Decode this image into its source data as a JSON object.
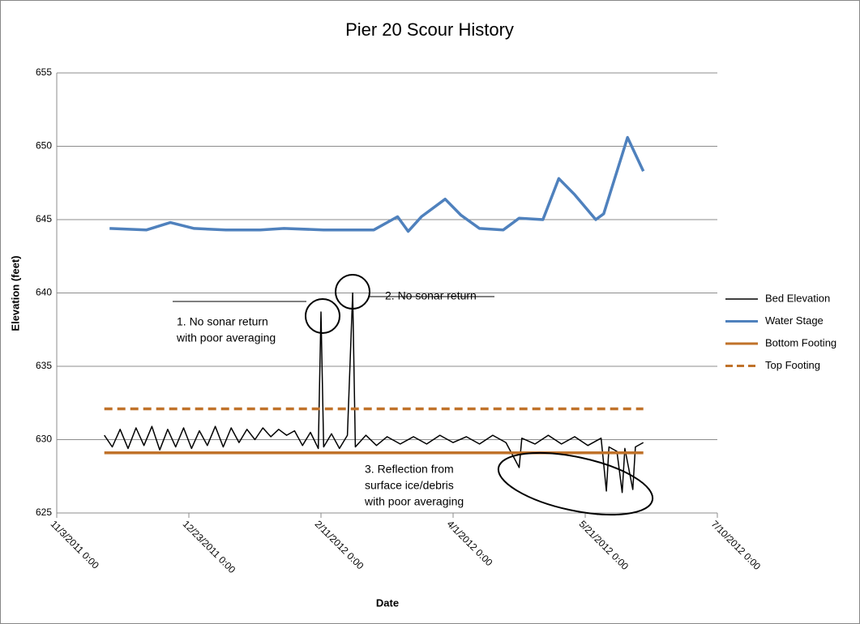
{
  "chart_data": {
    "type": "line",
    "title": "Pier 20 Scour History",
    "x_label": "Date",
    "y_label": "Elevation (feet)",
    "xlim": [
      "2011-11-03",
      "2012-07-10"
    ],
    "xticks": [
      {
        "value": "2011-11-03",
        "label": "11/3/2011 0:00"
      },
      {
        "value": "2011-12-23",
        "label": "12/23/2011 0:00"
      },
      {
        "value": "2012-02-11",
        "label": "2/11/2012 0:00"
      },
      {
        "value": "2012-04-01",
        "label": "4/1/2012 0:00"
      },
      {
        "value": "2012-05-21",
        "label": "5/21/2012 0:00"
      },
      {
        "value": "2012-07-10",
        "label": "7/10/2012 0:00"
      }
    ],
    "ylim": [
      625,
      655
    ],
    "yticks": [
      625,
      630,
      635,
      640,
      645,
      650,
      655
    ],
    "grid": true,
    "legend": "right",
    "series": [
      {
        "name": "Bed Elevation",
        "color": "#000000",
        "width": 1.5,
        "x": [
          "2011-11-21",
          "2011-11-24",
          "2011-11-27",
          "2011-11-30",
          "2011-12-03",
          "2011-12-06",
          "2011-12-09",
          "2011-12-12",
          "2011-12-15",
          "2011-12-18",
          "2011-12-21",
          "2011-12-24",
          "2011-12-27",
          "2011-12-30",
          "2012-01-02",
          "2012-01-05",
          "2012-01-08",
          "2012-01-11",
          "2012-01-14",
          "2012-01-17",
          "2012-01-20",
          "2012-01-23",
          "2012-01-26",
          "2012-01-29",
          "2012-02-01",
          "2012-02-04",
          "2012-02-07",
          "2012-02-10",
          "2012-02-11",
          "2012-02-12",
          "2012-02-15",
          "2012-02-18",
          "2012-02-21",
          "2012-02-23",
          "2012-02-24",
          "2012-02-28",
          "2012-03-03",
          "2012-03-07",
          "2012-03-12",
          "2012-03-17",
          "2012-03-22",
          "2012-03-27",
          "2012-04-01",
          "2012-04-06",
          "2012-04-11",
          "2012-04-16",
          "2012-04-21",
          "2012-04-26",
          "2012-04-27",
          "2012-05-02",
          "2012-05-07",
          "2012-05-12",
          "2012-05-17",
          "2012-05-22",
          "2012-05-27",
          "2012-05-29",
          "2012-05-30",
          "2012-06-02",
          "2012-06-04",
          "2012-06-05",
          "2012-06-08",
          "2012-06-09",
          "2012-06-12"
        ],
        "values": [
          630.3,
          629.5,
          630.7,
          629.4,
          630.8,
          629.6,
          630.9,
          629.3,
          630.7,
          629.5,
          630.8,
          629.4,
          630.6,
          629.6,
          630.9,
          629.5,
          630.8,
          629.8,
          630.7,
          630.0,
          630.8,
          630.2,
          630.7,
          630.3,
          630.6,
          629.6,
          630.5,
          629.4,
          638.7,
          629.5,
          630.4,
          629.4,
          630.3,
          640.0,
          629.5,
          630.3,
          629.6,
          630.2,
          629.7,
          630.2,
          629.7,
          630.3,
          629.8,
          630.2,
          629.7,
          630.3,
          629.8,
          628.1,
          630.1,
          629.7,
          630.3,
          629.7,
          630.2,
          629.6,
          630.1,
          626.5,
          629.5,
          629.2,
          626.4,
          629.4,
          626.6,
          629.5,
          629.8
        ]
      },
      {
        "name": "Water Stage",
        "color": "#4f81bd",
        "width": 3.5,
        "x": [
          "2011-11-23",
          "2011-12-07",
          "2011-12-16",
          "2011-12-25",
          "2012-01-06",
          "2012-01-19",
          "2012-01-28",
          "2012-02-12",
          "2012-02-21",
          "2012-03-02",
          "2012-03-11",
          "2012-03-15",
          "2012-03-20",
          "2012-03-29",
          "2012-04-04",
          "2012-04-11",
          "2012-04-20",
          "2012-04-26",
          "2012-05-05",
          "2012-05-11",
          "2012-05-17",
          "2012-05-25",
          "2012-05-28",
          "2012-06-06",
          "2012-06-12"
        ],
        "values": [
          644.4,
          644.3,
          644.8,
          644.4,
          644.3,
          644.3,
          644.4,
          644.3,
          644.3,
          644.3,
          645.2,
          644.2,
          645.2,
          646.4,
          645.3,
          644.4,
          644.3,
          645.1,
          645.0,
          647.8,
          646.7,
          645.0,
          645.4,
          650.6,
          648.3
        ]
      },
      {
        "name": "Bottom Footing",
        "color": "#c0722a",
        "width": 3.5,
        "x": [
          "2011-11-21",
          "2012-06-12"
        ],
        "values": [
          629.1,
          629.1
        ]
      },
      {
        "name": "Top Footing",
        "color": "#c0722a",
        "width": 3.5,
        "dash": true,
        "x": [
          "2011-11-21",
          "2012-06-12"
        ],
        "values": [
          632.1,
          632.1
        ]
      }
    ],
    "annotations": [
      [
        "1. No sonar return",
        "with poor averaging"
      ],
      [
        "2. No sonar return"
      ],
      [
        "3. Reflection from",
        "surface ice/debris",
        "with poor averaging"
      ]
    ]
  }
}
